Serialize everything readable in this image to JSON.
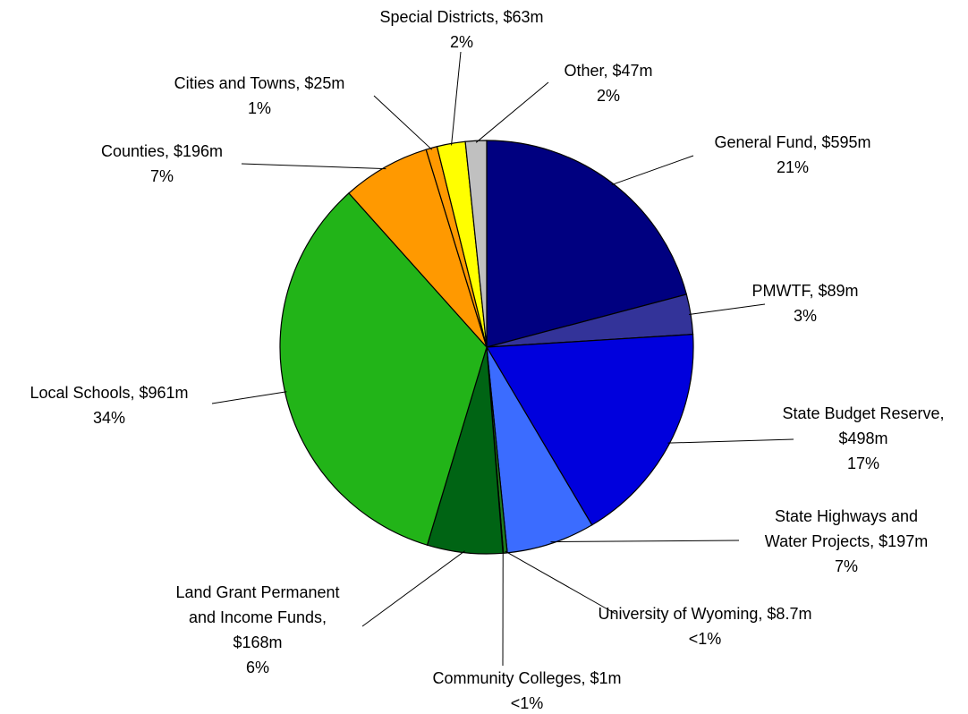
{
  "chart_data": {
    "type": "pie",
    "labels": [
      [
        "General Fund, $595m",
        "21%"
      ],
      [
        "PMWTF, $89m",
        "3%"
      ],
      [
        "State Budget Reserve,",
        "$498m",
        "17%"
      ],
      [
        "State Highways and",
        "Water Projects, $197m",
        "7%"
      ],
      [
        "University of Wyoming, $8.7m",
        "<1%"
      ],
      [
        "Community Colleges, $1m",
        "<1%"
      ],
      [
        "Land Grant Permanent",
        "and Income Funds,",
        "$168m",
        "6%"
      ],
      [
        "Local Schools, $961m",
        "34%"
      ],
      [
        "Counties, $196m",
        "7%"
      ],
      [
        "Cities and Towns, $25m",
        "1%"
      ],
      [
        "Special Districts, $63m",
        "2%"
      ],
      [
        "Other, $47m",
        "2%"
      ]
    ],
    "values": [
      595,
      89,
      498,
      197,
      8.7,
      1,
      168,
      961,
      196,
      25,
      63,
      47
    ],
    "colors": [
      "#000080",
      "#333399",
      "#0000dd",
      "#3b6cff",
      "#1f7a1f",
      "#0d5f0d",
      "#006414",
      "#22b418",
      "#ff9900",
      "#ff9900",
      "#ffff00",
      "#c0c0c0"
    ]
  }
}
